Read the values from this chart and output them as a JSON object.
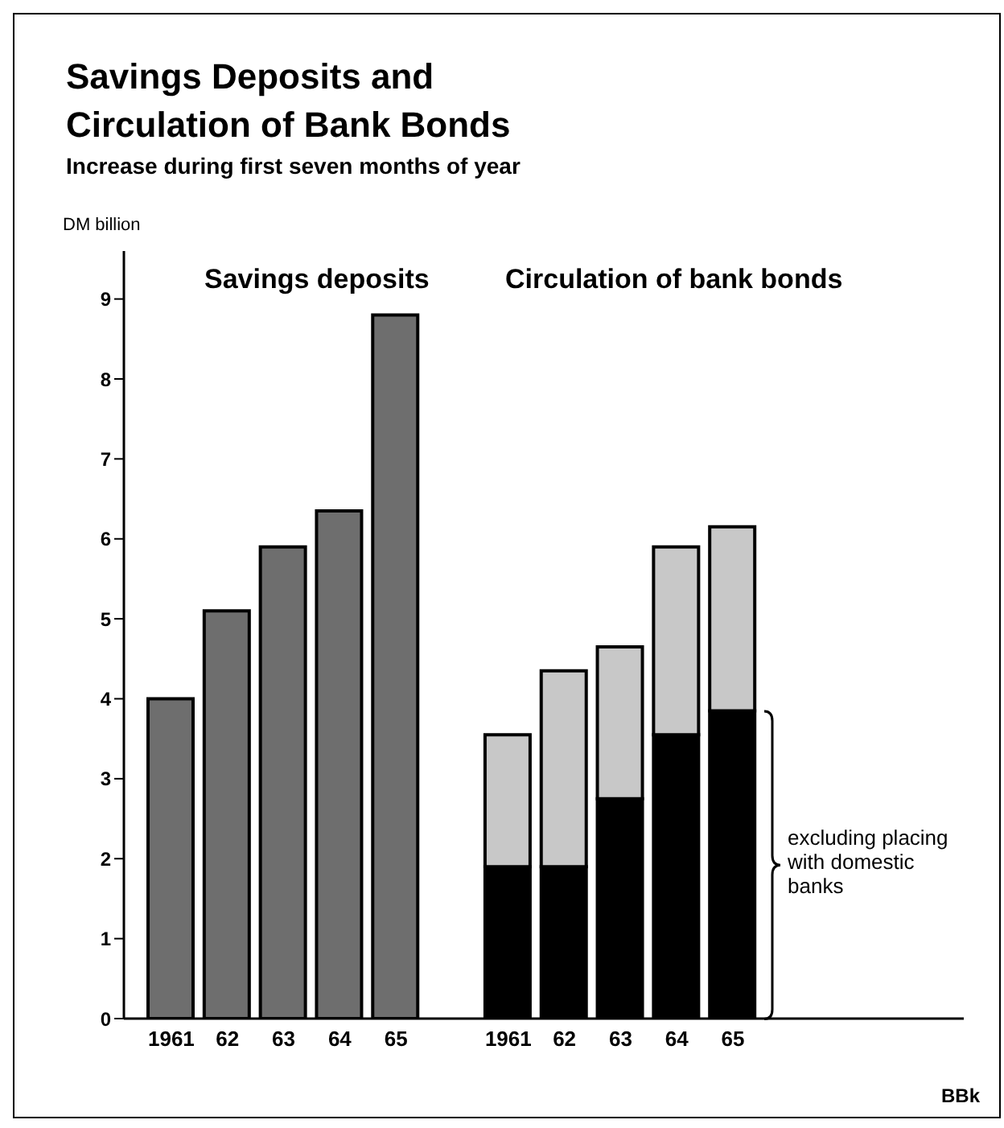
{
  "chart_data": {
    "type": "bar",
    "title": "Savings Deposits and Circulation of Bank Bonds",
    "subtitle": "Increase during first seven months of year",
    "ylabel": "DM billion",
    "categories": [
      "1961",
      "62",
      "63",
      "64",
      "65",
      null,
      "1961",
      "62",
      "63",
      "64",
      "65"
    ],
    "stacked": true,
    "series": [
      {
        "name": "Savings deposits",
        "color": "#6e6e6e",
        "values": [
          4.0,
          5.1,
          5.9,
          6.35,
          8.8,
          null,
          null,
          null,
          null,
          null,
          null
        ]
      },
      {
        "name": "excluding placing with domestic banks",
        "color": "#000000",
        "values": [
          null,
          null,
          null,
          null,
          null,
          null,
          1.9,
          1.9,
          2.75,
          3.55,
          3.85
        ]
      },
      {
        "color": "#c8c8c8",
        "values": [
          null,
          null,
          null,
          null,
          null,
          null,
          1.65,
          2.45,
          1.9,
          2.35,
          2.3
        ]
      }
    ],
    "ylim": [
      0,
      9.6
    ],
    "yticks": [
      0,
      1,
      2,
      3,
      4,
      5,
      6,
      7,
      8,
      9
    ],
    "annotations": [
      "Circulation of bank bonds",
      "BBk"
    ]
  }
}
